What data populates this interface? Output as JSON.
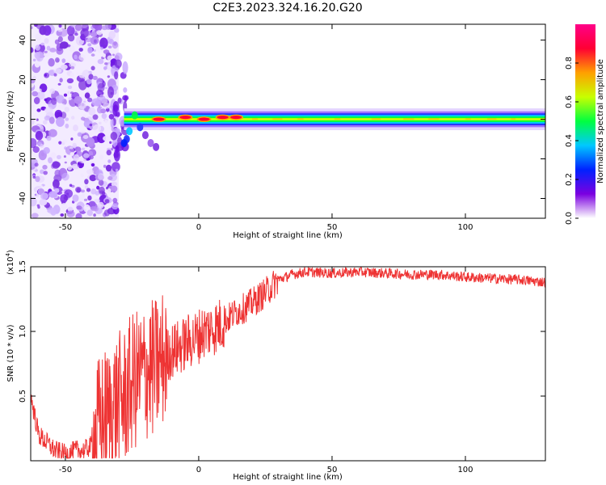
{
  "title": "C2E3.2023.324.16.20.G20",
  "chart_data": [
    {
      "type": "heatmap",
      "xlabel": "Height of straight line (km)",
      "ylabel": "Frequency (Hz)",
      "xlim": [
        -63,
        130
      ],
      "ylim": [
        -50,
        48
      ],
      "xticks": [
        -50,
        0,
        50,
        100
      ],
      "yticks": [
        -40,
        -20,
        0,
        20,
        40
      ],
      "colorbar": {
        "label": "Normalized spectral amplitude",
        "range": [
          0.0,
          1.0
        ],
        "ticks": [
          "0.0",
          "0.2",
          "0.4",
          "0.6",
          "0.8"
        ],
        "colors": [
          "#ffffff",
          "#7b00e0",
          "#0022ff",
          "#00c8ff",
          "#00ff40",
          "#c8ff00",
          "#ffa000",
          "#ff0033",
          "#ff0088"
        ]
      },
      "noise_region_x": [
        -63,
        -30
      ],
      "signal_band": {
        "x_start": -28,
        "frequency_center": 0,
        "halfwidth_hz": 3
      },
      "peaks": [
        {
          "x": -15,
          "frequency": 0,
          "amplitude": 0.92
        },
        {
          "x": -5,
          "frequency": 1,
          "amplitude": 0.9
        },
        {
          "x": 2,
          "frequency": 0,
          "amplitude": 0.88
        },
        {
          "x": 9,
          "frequency": 1,
          "amplitude": 0.9
        },
        {
          "x": 14,
          "frequency": 1,
          "amplitude": 0.85
        }
      ]
    },
    {
      "type": "line",
      "xlabel": "Height of straight line (km)",
      "ylabel": "SNR (10 * v/v)",
      "y_multiplier": "(x10^4)",
      "multiplier_base": "(x10",
      "multiplier_exp": "4",
      "multiplier_close": ")",
      "xlim": [
        -63,
        130
      ],
      "ylim": [
        0,
        1.5
      ],
      "xticks": [
        -50,
        0,
        50,
        100
      ],
      "yticks": [
        0.5,
        1.0,
        1.5
      ],
      "ytick_labels": [
        "0.5",
        "1.0",
        "1.5"
      ],
      "series": [
        {
          "color": "#ee3333",
          "x": [
            -63,
            -60,
            -57,
            -54,
            -50,
            -46,
            -43,
            -40,
            -37,
            -34,
            -31,
            -28,
            -25,
            -22,
            -19,
            -16,
            -13,
            -10,
            -7,
            -4,
            -1,
            2,
            5,
            8,
            11,
            14,
            17,
            20,
            25,
            30,
            35,
            40,
            50,
            60,
            70,
            80,
            90,
            100,
            110,
            120,
            130
          ],
          "y": [
            0.5,
            0.2,
            0.14,
            0.08,
            0.05,
            0.08,
            0.08,
            0.12,
            0.3,
            0.35,
            0.45,
            0.48,
            0.6,
            0.65,
            0.7,
            0.72,
            0.8,
            0.85,
            0.88,
            0.92,
            0.95,
            1.0,
            1.02,
            1.05,
            1.1,
            1.15,
            1.18,
            1.22,
            1.3,
            1.4,
            1.44,
            1.46,
            1.45,
            1.46,
            1.45,
            1.44,
            1.44,
            1.42,
            1.41,
            1.4,
            1.38
          ]
        }
      ]
    }
  ]
}
